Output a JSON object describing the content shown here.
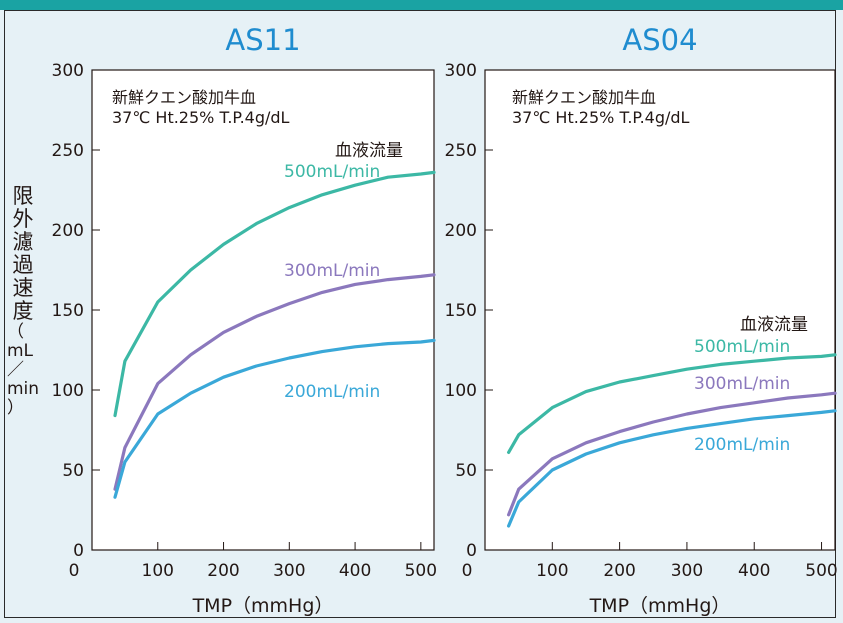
{
  "chart_data": [
    {
      "type": "line",
      "title": "AS11",
      "note_line1": "新鮮クエン酸加牛血",
      "note_line2": "37℃ Ht.25%  T.P.4g/dL",
      "legend_title": "血液流量",
      "xlabel": "TMP（mmHg）",
      "ylabel": "限外濾過速度",
      "ylabel_unit": [
        "（",
        "mL",
        "／",
        "min",
        "）"
      ],
      "xlim": [
        0,
        520
      ],
      "ylim": [
        0,
        300
      ],
      "xticks": [
        0,
        100,
        200,
        300,
        400,
        500
      ],
      "yticks": [
        0,
        50,
        100,
        150,
        200,
        250,
        300
      ],
      "series": [
        {
          "name": "500mL/min",
          "color": "#3cb8a5",
          "x": [
            35,
            50,
            100,
            150,
            200,
            250,
            300,
            350,
            400,
            450,
            500,
            520
          ],
          "y": [
            84,
            118,
            155,
            175,
            191,
            204,
            214,
            222,
            228,
            233,
            235,
            236
          ]
        },
        {
          "name": "300mL/min",
          "color": "#8b78bd",
          "x": [
            35,
            50,
            100,
            150,
            200,
            250,
            300,
            350,
            400,
            450,
            500,
            520
          ],
          "y": [
            38,
            64,
            104,
            122,
            136,
            146,
            154,
            161,
            166,
            169,
            171,
            172
          ]
        },
        {
          "name": "200mL/min",
          "color": "#3aa8d8",
          "x": [
            35,
            50,
            100,
            150,
            200,
            250,
            300,
            350,
            400,
            450,
            500,
            520
          ],
          "y": [
            33,
            55,
            85,
            98,
            108,
            115,
            120,
            124,
            127,
            129,
            130,
            131
          ]
        }
      ]
    },
    {
      "type": "line",
      "title": "AS04",
      "note_line1": "新鮮クエン酸加牛血",
      "note_line2": "37℃ Ht.25%  T.P.4g/dL",
      "legend_title": "血液流量",
      "xlabel": "TMP（mmHg）",
      "xlim": [
        0,
        520
      ],
      "ylim": [
        0,
        300
      ],
      "xticks": [
        0,
        100,
        200,
        300,
        400,
        500
      ],
      "yticks": [
        0,
        50,
        100,
        150,
        200,
        250,
        300
      ],
      "series": [
        {
          "name": "500mL/min",
          "color": "#3cb8a5",
          "x": [
            35,
            50,
            100,
            150,
            200,
            250,
            300,
            350,
            400,
            450,
            500,
            520
          ],
          "y": [
            61,
            72,
            89,
            99,
            105,
            109,
            113,
            116,
            118,
            120,
            121,
            122
          ]
        },
        {
          "name": "300mL/min",
          "color": "#8b78bd",
          "x": [
            35,
            50,
            100,
            150,
            200,
            250,
            300,
            350,
            400,
            450,
            500,
            520
          ],
          "y": [
            22,
            38,
            57,
            67,
            74,
            80,
            85,
            89,
            92,
            95,
            97,
            98
          ]
        },
        {
          "name": "200mL/min",
          "color": "#3aa8d8",
          "x": [
            35,
            50,
            100,
            150,
            200,
            250,
            300,
            350,
            400,
            450,
            500,
            520
          ],
          "y": [
            15,
            30,
            50,
            60,
            67,
            72,
            76,
            79,
            82,
            84,
            86,
            87
          ]
        }
      ]
    }
  ]
}
